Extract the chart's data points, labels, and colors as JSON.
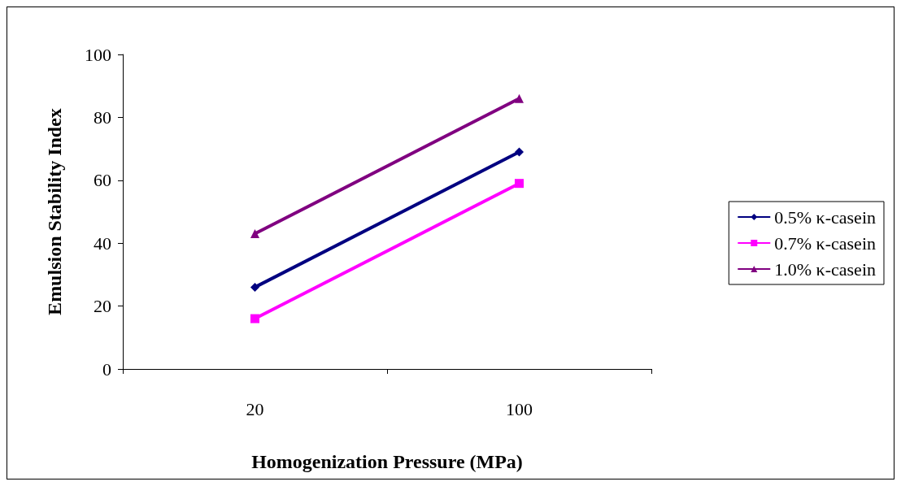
{
  "chart_data": {
    "type": "line",
    "xlabel": "Homogenization Pressure (MPa)",
    "ylabel": "Emulsion Stability Index",
    "categories": [
      "20",
      "100"
    ],
    "series": [
      {
        "name": "0.5% κ-casein",
        "color": "#000080",
        "values": [
          26,
          69
        ],
        "marker": "diamond"
      },
      {
        "name": "0.7% κ-casein",
        "color": "#ff00ff",
        "values": [
          16,
          59
        ],
        "marker": "square"
      },
      {
        "name": "1.0% κ-casein",
        "color": "#800080",
        "values": [
          43,
          86
        ],
        "marker": "triangle"
      }
    ],
    "ylim": [
      0,
      100
    ],
    "yticks": [
      0,
      20,
      40,
      60,
      80,
      100
    ],
    "grid": false,
    "legend": "right",
    "line_style": "solid"
  }
}
